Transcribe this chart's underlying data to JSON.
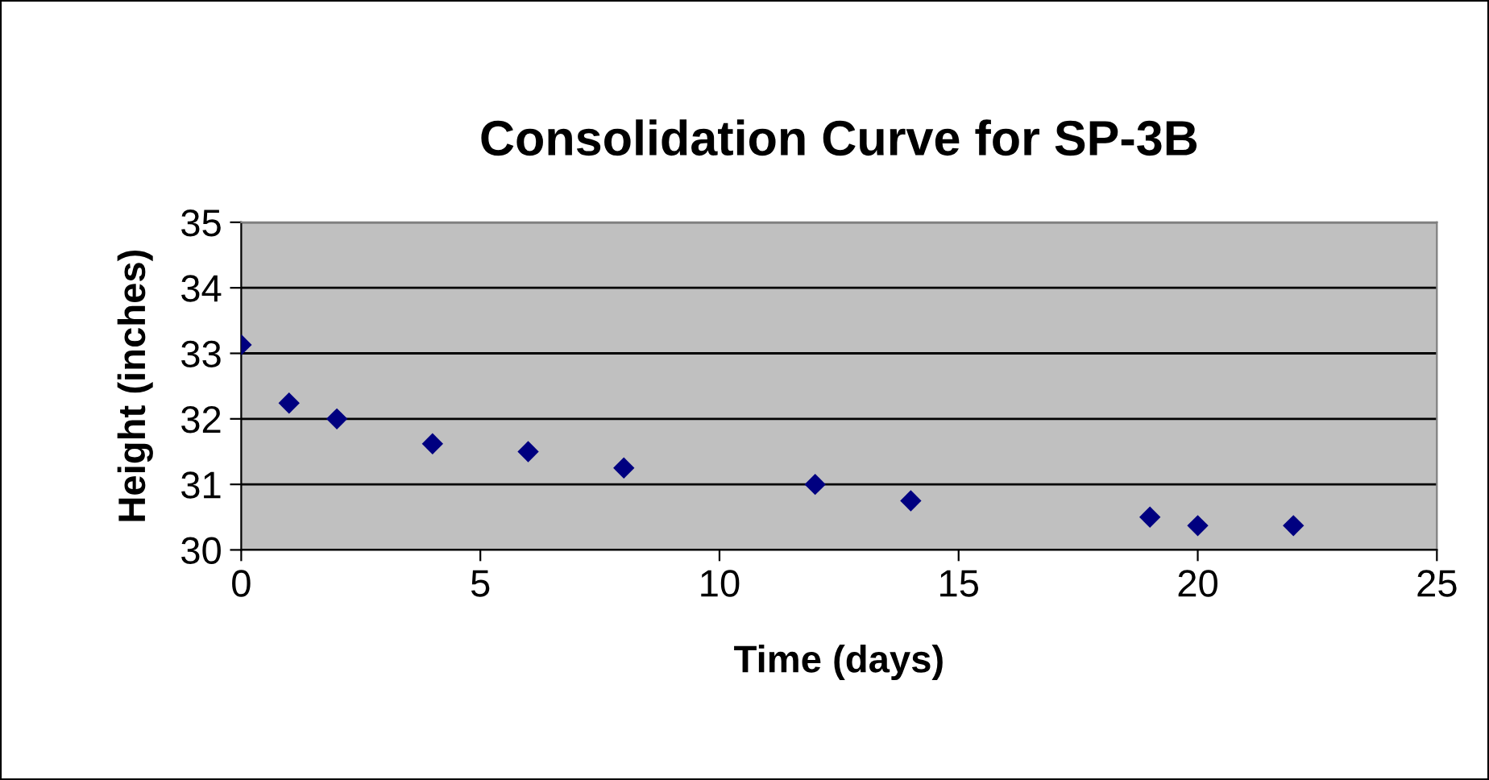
{
  "chart_data": {
    "type": "scatter",
    "title": "Consolidation Curve for SP-3B",
    "xlabel": "Time (days)",
    "ylabel": "Height (inches)",
    "x": [
      0,
      1,
      2,
      4,
      6,
      8,
      12,
      14,
      19,
      20,
      22
    ],
    "series": [
      {
        "color": "#000080",
        "values": [
          33.13,
          32.24,
          32.0,
          31.62,
          31.5,
          31.25,
          31.0,
          30.75,
          30.5,
          30.37,
          30.37
        ]
      }
    ],
    "xlim": [
      0,
      25
    ],
    "xticks": [
      0,
      5,
      10,
      15,
      20,
      25
    ],
    "ylim": [
      30,
      35
    ],
    "yticks": [
      30,
      31,
      32,
      33,
      34,
      35
    ],
    "grid": "y",
    "marker": "diamond"
  }
}
